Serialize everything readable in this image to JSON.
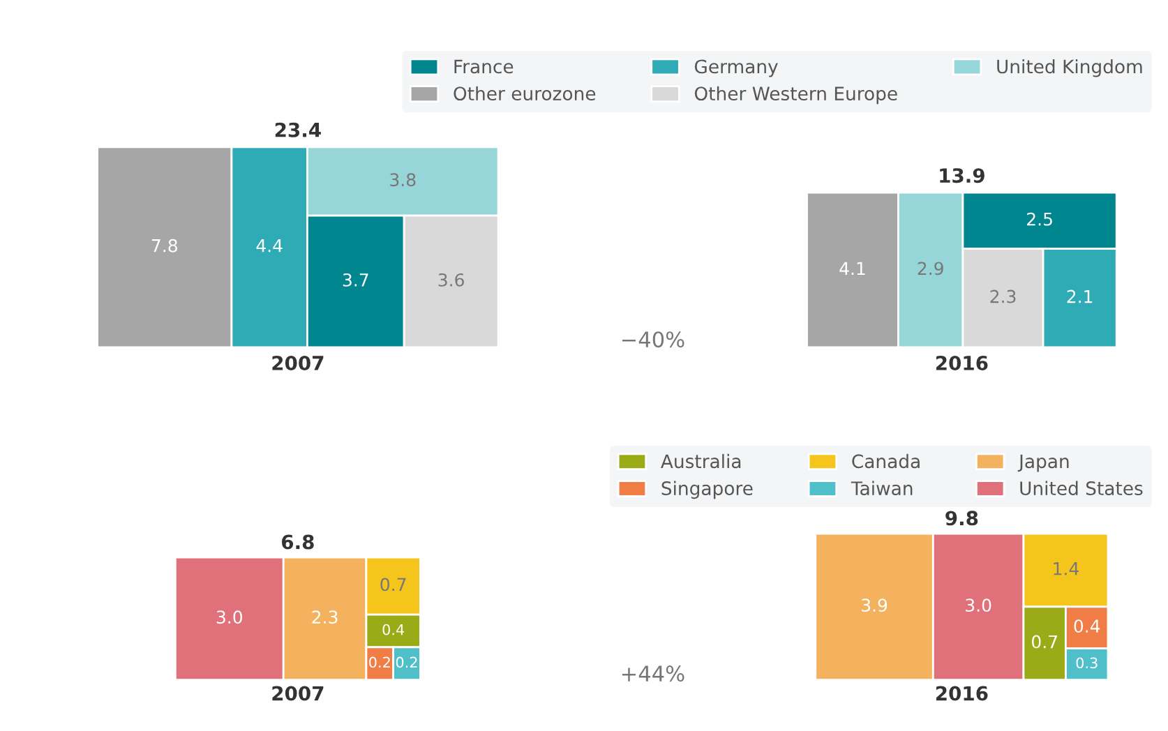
{
  "chart_data": [
    {
      "type": "other",
      "categories": [
        "2007",
        "2016"
      ],
      "totals": [
        "23.4",
        "13.9"
      ],
      "annotations": [
        "−40%"
      ],
      "legend": "top",
      "series": [
        {
          "name": "France",
          "color": "#00868f",
          "values": [
            3.7,
            2.5
          ],
          "value_labels": [
            "3.7",
            "2.5"
          ]
        },
        {
          "name": "Germany",
          "color": "#2eabb5",
          "values": [
            4.4,
            2.1
          ],
          "value_labels": [
            "4.4",
            "2.1"
          ]
        },
        {
          "name": "United Kingdom",
          "color": "#97d6d8",
          "values": [
            3.8,
            2.9
          ],
          "value_labels": [
            "3.8",
            "2.9"
          ]
        },
        {
          "name": "Other eurozone",
          "color": "#a6a6a6",
          "values": [
            7.8,
            4.1
          ],
          "value_labels": [
            "7.8",
            "4.1"
          ]
        },
        {
          "name": "Other Western Europe",
          "color": "#d9d9d9",
          "values": [
            3.6,
            2.3
          ],
          "value_labels": [
            "3.6",
            "2.3"
          ]
        }
      ]
    },
    {
      "type": "other",
      "categories": [
        "2007",
        "2016"
      ],
      "totals": [
        "6.8",
        "9.8"
      ],
      "annotations": [
        "+44%"
      ],
      "legend": "top",
      "series": [
        {
          "name": "Australia",
          "color": "#9aab17",
          "values": [
            0.4,
            0.7
          ],
          "value_labels": [
            "0.4",
            "0.7"
          ]
        },
        {
          "name": "Canada",
          "color": "#f5c51c",
          "values": [
            0.7,
            1.4
          ],
          "value_labels": [
            "0.7",
            "1.4"
          ]
        },
        {
          "name": "Japan",
          "color": "#f4b25e",
          "values": [
            2.3,
            3.9
          ],
          "value_labels": [
            "2.3",
            "3.9"
          ]
        },
        {
          "name": "Singapore",
          "color": "#ef7d45",
          "values": [
            0.2,
            0.4
          ],
          "value_labels": [
            "0.2",
            "0.4"
          ]
        },
        {
          "name": "Taiwan",
          "color": "#4fbfca",
          "values": [
            0.2,
            0.3
          ],
          "value_labels": [
            "0.2",
            "0.3"
          ]
        },
        {
          "name": "United States",
          "color": "#e07079",
          "values": [
            3.0,
            3.0
          ],
          "value_labels": [
            "3.0",
            "3.0"
          ]
        }
      ]
    }
  ]
}
